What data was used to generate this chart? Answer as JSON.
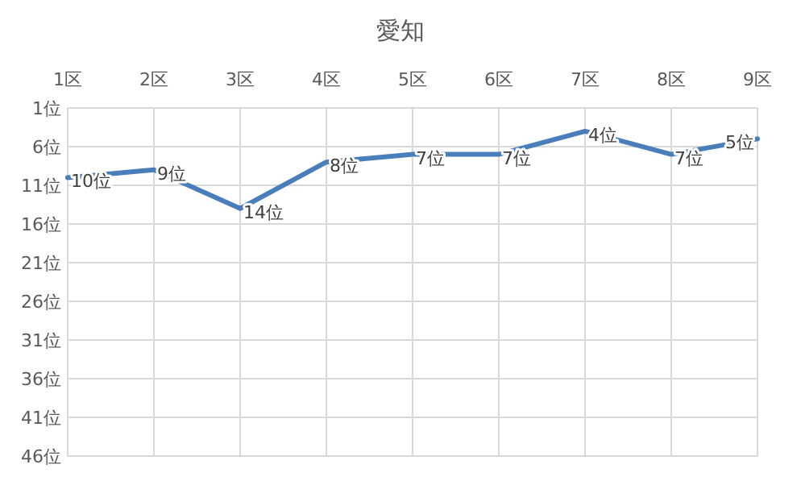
{
  "chart_data": {
    "type": "line",
    "title": "愛知",
    "categories": [
      "1区",
      "2区",
      "3区",
      "4区",
      "5区",
      "6区",
      "7区",
      "8区",
      "9区"
    ],
    "series": [
      {
        "color": "#4a7ebb",
        "values": [
          10,
          9,
          14,
          8,
          7,
          7,
          4,
          7,
          5
        ],
        "value_labels": [
          "10位",
          "9位",
          "14位",
          "8位",
          "7位",
          "7位",
          "4位",
          "7位",
          "5位"
        ]
      }
    ],
    "ylim": [
      46,
      1
    ],
    "yticks": [
      {
        "value": 1,
        "label": "1位"
      },
      {
        "value": 6,
        "label": "6位"
      },
      {
        "value": 11,
        "label": "11位"
      },
      {
        "value": 16,
        "label": "16位"
      },
      {
        "value": 21,
        "label": "21位"
      },
      {
        "value": 26,
        "label": "26位"
      },
      {
        "value": 31,
        "label": "31位"
      },
      {
        "value": 36,
        "label": "36位"
      },
      {
        "value": 41,
        "label": "41位"
      },
      {
        "value": 46,
        "label": "46位"
      }
    ],
    "grid": true,
    "marker": "none",
    "line_style": "solid"
  }
}
